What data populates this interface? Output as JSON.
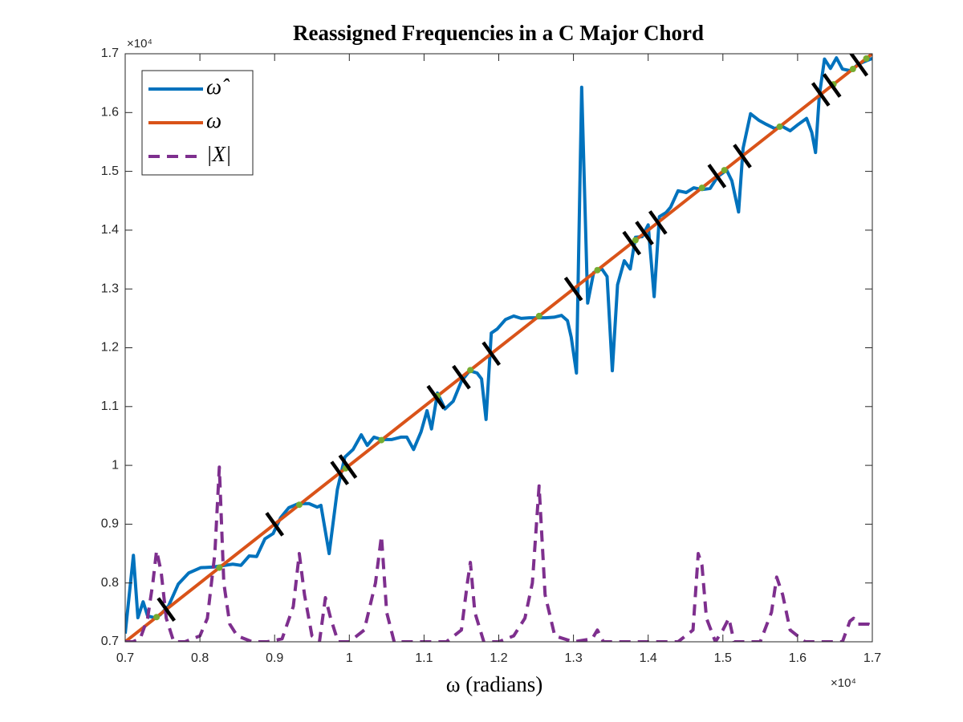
{
  "chart_data": {
    "type": "line",
    "title": "Reassigned Frequencies in a C Major Chord",
    "x_label": "ω (radians)",
    "x_multiplier": "×10⁴",
    "y_multiplier": "×10⁴",
    "xlim": [
      0.7,
      1.7
    ],
    "ylim": [
      0.7,
      1.7
    ],
    "xticks": [
      0.7,
      0.8,
      0.9,
      1,
      1.1,
      1.2,
      1.3,
      1.4,
      1.5,
      1.6,
      1.7
    ],
    "yticks": [
      0.7,
      0.8,
      0.9,
      1,
      1.1,
      1.2,
      1.3,
      1.4,
      1.5,
      1.6,
      1.7
    ],
    "legend": "upper-left",
    "series": [
      {
        "name": "ω̂",
        "color": "#0072BD",
        "style": "solid",
        "x": [
          0.7,
          0.711,
          0.717,
          0.724,
          0.73,
          0.739,
          0.747,
          0.758,
          0.771,
          0.785,
          0.801,
          0.817,
          0.833,
          0.844,
          0.855,
          0.866,
          0.876,
          0.887,
          0.898,
          0.908,
          0.919,
          0.932,
          0.946,
          0.957,
          0.962,
          0.973,
          0.984,
          0.994,
          1.005,
          1.016,
          1.024,
          1.033,
          1.043,
          1.057,
          1.069,
          1.077,
          1.086,
          1.096,
          1.104,
          1.11,
          1.118,
          1.128,
          1.139,
          1.15,
          1.161,
          1.171,
          1.177,
          1.183,
          1.19,
          1.198,
          1.209,
          1.22,
          1.23,
          1.241,
          1.252,
          1.263,
          1.274,
          1.284,
          1.292,
          1.297,
          1.304,
          1.311,
          1.319,
          1.327,
          1.338,
          1.345,
          1.352,
          1.359,
          1.368,
          1.376,
          1.383,
          1.392,
          1.4,
          1.408,
          1.415,
          1.424,
          1.43,
          1.44,
          1.451,
          1.461,
          1.472,
          1.483,
          1.493,
          1.505,
          1.512,
          1.521,
          1.527,
          1.537,
          1.548,
          1.558,
          1.569,
          1.58,
          1.59,
          1.601,
          1.612,
          1.619,
          1.624,
          1.629,
          1.636,
          1.644,
          1.652,
          1.66,
          1.671,
          1.681,
          1.692,
          1.7
        ],
        "values": [
          0.714,
          0.847,
          0.741,
          0.768,
          0.744,
          0.741,
          0.746,
          0.761,
          0.798,
          0.817,
          0.826,
          0.827,
          0.83,
          0.832,
          0.83,
          0.846,
          0.845,
          0.875,
          0.884,
          0.911,
          0.928,
          0.935,
          0.935,
          0.929,
          0.932,
          0.85,
          0.959,
          1.014,
          1.027,
          1.052,
          1.034,
          1.048,
          1.044,
          1.044,
          1.048,
          1.048,
          1.027,
          1.057,
          1.093,
          1.062,
          1.123,
          1.096,
          1.109,
          1.143,
          1.161,
          1.157,
          1.147,
          1.078,
          1.225,
          1.232,
          1.248,
          1.254,
          1.25,
          1.251,
          1.251,
          1.251,
          1.252,
          1.255,
          1.246,
          1.218,
          1.157,
          1.643,
          1.276,
          1.328,
          1.334,
          1.321,
          1.161,
          1.307,
          1.348,
          1.334,
          1.388,
          1.389,
          1.409,
          1.287,
          1.423,
          1.43,
          1.439,
          1.467,
          1.464,
          1.472,
          1.469,
          1.471,
          1.491,
          1.502,
          1.484,
          1.431,
          1.539,
          1.598,
          1.587,
          1.58,
          1.573,
          1.576,
          1.569,
          1.58,
          1.59,
          1.566,
          1.532,
          1.628,
          1.691,
          1.675,
          1.693,
          1.674,
          1.671,
          1.682,
          1.688,
          1.692
        ]
      },
      {
        "name": "ω",
        "color": "#D95319",
        "style": "solid",
        "x": [
          0.7,
          1.7
        ],
        "values": [
          0.7,
          1.7
        ]
      },
      {
        "name": "|X|",
        "color": "#7E2F8E",
        "style": "dashed",
        "x": [
          0.7,
          0.71,
          0.72,
          0.73,
          0.737,
          0.742,
          0.748,
          0.755,
          0.765,
          0.78,
          0.8,
          0.81,
          0.82,
          0.826,
          0.832,
          0.84,
          0.85,
          0.87,
          0.89,
          0.91,
          0.925,
          0.933,
          0.94,
          0.95,
          0.96,
          0.968,
          0.975,
          0.985,
          1.0,
          1.02,
          1.035,
          1.043,
          1.05,
          1.06,
          1.08,
          1.1,
          1.13,
          1.15,
          1.158,
          1.162,
          1.168,
          1.18,
          1.2,
          1.22,
          1.235,
          1.245,
          1.254,
          1.262,
          1.275,
          1.3,
          1.325,
          1.332,
          1.34,
          1.37,
          1.4,
          1.44,
          1.46,
          1.467,
          1.472,
          1.478,
          1.49,
          1.5,
          1.508,
          1.515,
          1.53,
          1.55,
          1.565,
          1.572,
          1.58,
          1.59,
          1.61,
          1.64,
          1.66,
          1.67,
          1.675,
          1.68,
          1.695,
          1.7
        ],
        "values": [
          0.7,
          0.7,
          0.705,
          0.74,
          0.8,
          0.855,
          0.82,
          0.74,
          0.7,
          0.7,
          0.71,
          0.74,
          0.85,
          0.997,
          0.8,
          0.73,
          0.71,
          0.7,
          0.7,
          0.705,
          0.76,
          0.85,
          0.78,
          0.71,
          0.7,
          0.775,
          0.74,
          0.7,
          0.7,
          0.72,
          0.8,
          0.88,
          0.75,
          0.7,
          0.7,
          0.7,
          0.7,
          0.72,
          0.8,
          0.835,
          0.75,
          0.7,
          0.7,
          0.71,
          0.74,
          0.8,
          0.965,
          0.78,
          0.71,
          0.7,
          0.705,
          0.72,
          0.7,
          0.7,
          0.7,
          0.7,
          0.72,
          0.85,
          0.83,
          0.74,
          0.7,
          0.72,
          0.74,
          0.7,
          0.7,
          0.7,
          0.75,
          0.81,
          0.78,
          0.72,
          0.7,
          0.7,
          0.7,
          0.735,
          0.74,
          0.73,
          0.73,
          0.727
        ]
      },
      {
        "type": "scatter",
        "marker": "dot",
        "color": "#77AC30",
        "x": [
          0.742,
          0.826,
          0.933,
          0.995,
          1.043,
          1.118,
          1.162,
          1.254,
          1.332,
          1.383,
          1.472,
          1.502,
          1.576,
          1.648,
          1.674,
          1.692
        ],
        "values": [
          0.742,
          0.826,
          0.933,
          0.995,
          1.043,
          1.118,
          1.162,
          1.254,
          1.332,
          1.383,
          1.472,
          1.502,
          1.576,
          1.648,
          1.674,
          1.692
        ]
      },
      {
        "type": "scatter",
        "marker": "slash",
        "color": "#000000",
        "x": [
          0.755,
          0.9,
          0.987,
          0.998,
          1.116,
          1.15,
          1.19,
          1.3,
          1.378,
          1.395,
          1.413,
          1.492,
          1.526,
          1.631,
          1.646,
          1.682
        ],
        "values": [
          0.755,
          0.9,
          0.987,
          0.998,
          1.116,
          1.15,
          1.19,
          1.3,
          1.378,
          1.395,
          1.413,
          1.492,
          1.526,
          1.631,
          1.646,
          1.682
        ]
      }
    ]
  }
}
